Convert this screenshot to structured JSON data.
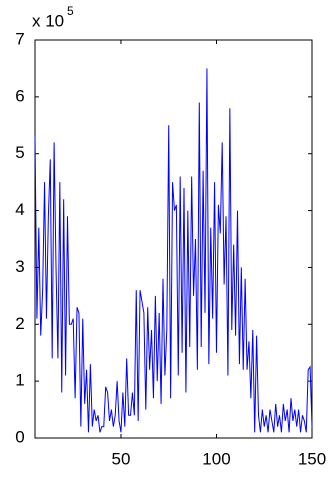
{
  "chart_data": {
    "type": "line",
    "color": "#0000ff",
    "y_scale_label": "x 10",
    "y_scale_exponent": "5",
    "x": [
      5,
      6,
      7,
      8,
      9,
      10,
      11,
      12,
      13,
      14,
      15,
      16,
      17,
      18,
      19,
      20,
      21,
      22,
      23,
      24,
      25,
      26,
      27,
      28,
      29,
      30,
      31,
      32,
      33,
      34,
      35,
      36,
      37,
      38,
      39,
      40,
      41,
      42,
      43,
      44,
      45,
      46,
      47,
      48,
      49,
      50,
      51,
      52,
      53,
      54,
      55,
      56,
      57,
      58,
      59,
      60,
      61,
      62,
      63,
      64,
      65,
      66,
      67,
      68,
      69,
      70,
      71,
      72,
      73,
      74,
      75,
      76,
      77,
      78,
      79,
      80,
      81,
      82,
      83,
      84,
      85,
      86,
      87,
      88,
      89,
      90,
      91,
      92,
      93,
      94,
      95,
      96,
      97,
      98,
      99,
      100,
      101,
      102,
      103,
      104,
      105,
      106,
      107,
      108,
      109,
      110,
      111,
      112,
      113,
      114,
      115,
      116,
      117,
      118,
      119,
      120,
      121,
      122,
      123,
      124,
      125,
      126,
      127,
      128,
      129,
      130,
      131,
      132,
      133,
      134,
      135,
      136,
      137,
      138,
      139,
      140,
      141,
      142,
      143,
      144,
      145,
      146,
      147,
      148,
      149,
      150
    ],
    "values": [
      5.3,
      2.1,
      3.7,
      1.8,
      2.6,
      4.5,
      2.1,
      3.9,
      4.9,
      1.4,
      5.2,
      3.0,
      1.4,
      4.5,
      0.8,
      4.2,
      1.1,
      3.9,
      2.0,
      2.0,
      2.1,
      0.7,
      2.3,
      2.2,
      0.2,
      2.1,
      0.6,
      1.2,
      0.1,
      1.3,
      0.2,
      0.5,
      0.3,
      0.4,
      0.1,
      0.2,
      0.2,
      0.9,
      0.8,
      0.3,
      0.5,
      0.2,
      0.4,
      1.0,
      0.3,
      0.1,
      0.8,
      0.2,
      1.4,
      0.4,
      0.4,
      0.8,
      0.4,
      2.6,
      0.3,
      2.6,
      2.4,
      2.2,
      0.5,
      2.3,
      1.2,
      1.9,
      0.7,
      2.5,
      1.0,
      2.2,
      0.6,
      2.8,
      1.1,
      1.9,
      5.5,
      0.7,
      4.5,
      4.0,
      4.1,
      1.1,
      4.6,
      1.5,
      4.4,
      0.8,
      4.0,
      1.6,
      4.6,
      2.5,
      3.5,
      1.2,
      5.9,
      1.6,
      4.7,
      2.2,
      6.5,
      1.3,
      3.7,
      2.1,
      4.5,
      1.5,
      4.1,
      3.6,
      5.2,
      2.7,
      3.9,
      1.1,
      5.8,
      1.9,
      3.4,
      1.8,
      4.0,
      1.3,
      3.0,
      1.2,
      2.8,
      1.2,
      1.7,
      0.7,
      1.9,
      0.1,
      1.8,
      0.4,
      0.1,
      0.5,
      0.2,
      0.4,
      0.1,
      0.5,
      0.3,
      0.1,
      0.6,
      0.2,
      0.4,
      0.1,
      0.6,
      0.3,
      0.5,
      0.1,
      0.7,
      0.3,
      0.5,
      0.2,
      0.5,
      0.1,
      0.4,
      0.3,
      0.1,
      1.2,
      1.25,
      0.2
    ],
    "xlim": [
      5,
      150
    ],
    "xticks": [
      50,
      100,
      150
    ],
    "ylim": [
      0,
      7
    ],
    "yticks": [
      0,
      1,
      2,
      3,
      4,
      5,
      6,
      7
    ]
  }
}
